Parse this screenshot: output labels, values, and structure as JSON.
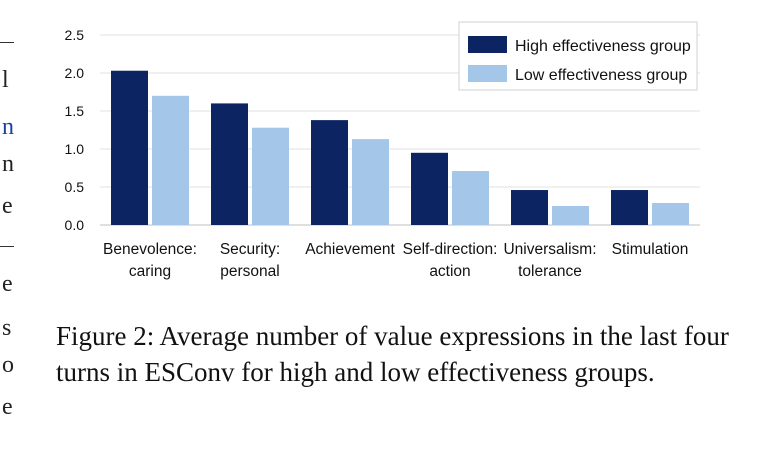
{
  "caption": "Figure 2: Average number of value expressions in the last four turns in ESConv for high and low effectiveness groups.",
  "margin_glyphs": [
    "l",
    "n",
    "n",
    "e",
    "e",
    "s",
    "o",
    "e"
  ],
  "colors": {
    "high": "#0c2461",
    "low": "#a4c6e8",
    "grid": "#e0e0e0",
    "axis": "#bfbfbf",
    "margin_link": "#1a3fa0"
  },
  "chart_data": {
    "type": "bar",
    "title": "",
    "xlabel": "",
    "ylabel": "",
    "categories": [
      [
        "Benevolence:",
        "caring"
      ],
      [
        "Security:",
        "personal"
      ],
      [
        "Achievement"
      ],
      [
        "Self-direction:",
        "action"
      ],
      [
        "Universalism:",
        "tolerance"
      ],
      [
        "Stimulation"
      ]
    ],
    "series": [
      {
        "name": "High effectiveness group",
        "color": "#0c2461",
        "values": [
          2.03,
          1.6,
          1.38,
          0.95,
          0.46,
          0.46
        ]
      },
      {
        "name": "Low effectiveness group",
        "color": "#a4c6e8",
        "values": [
          1.7,
          1.28,
          1.13,
          0.71,
          0.25,
          0.29
        ]
      }
    ],
    "ylim": [
      0,
      2.5
    ],
    "yticks": [
      "0.0",
      "0.5",
      "1.0",
      "1.5",
      "2.0",
      "2.5"
    ],
    "grid": true,
    "legend": "top-right"
  }
}
